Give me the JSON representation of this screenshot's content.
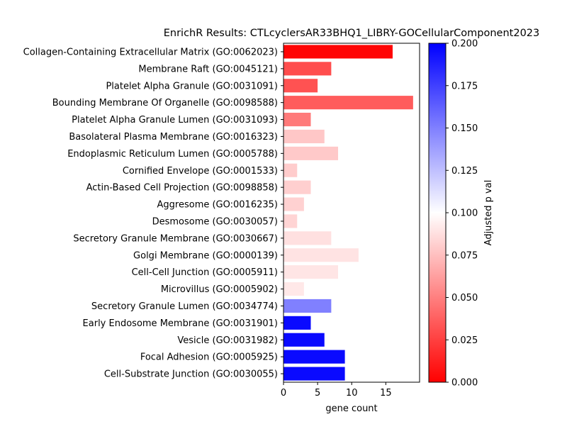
{
  "chart_data": {
    "type": "bar",
    "orientation": "horizontal",
    "title": "EnrichR Results: CTLcyclersAR33BHQ1_LIBRY-GOCellularComponent2023",
    "xlabel": "gene count",
    "ylabel": "",
    "xlim": [
      0,
      19.95
    ],
    "x_ticks": [
      "0",
      "5",
      "10",
      "15"
    ],
    "grid": false,
    "categories": [
      "Collagen-Containing Extracellular Matrix (GO:0062023)",
      "Membrane Raft (GO:0045121)",
      "Platelet Alpha Granule (GO:0031091)",
      "Bounding Membrane Of Organelle (GO:0098588)",
      "Platelet Alpha Granule Lumen (GO:0031093)",
      "Basolateral Plasma Membrane (GO:0016323)",
      "Endoplasmic Reticulum Lumen (GO:0005788)",
      "Cornified Envelope (GO:0001533)",
      "Actin-Based Cell Projection (GO:0098858)",
      "Aggresome (GO:0016235)",
      "Desmosome (GO:0030057)",
      "Secretory Granule Membrane (GO:0030667)",
      "Golgi Membrane (GO:0000139)",
      "Cell-Cell Junction (GO:0005911)",
      "Microvillus (GO:0005902)",
      "Secretory Granule Lumen (GO:0034774)",
      "Early Endosome Membrane (GO:0031901)",
      "Vesicle (GO:0031982)",
      "Focal Adhesion (GO:0005925)",
      "Cell-Substrate Junction (GO:0030055)"
    ],
    "values": [
      16,
      7,
      5,
      19,
      4,
      6,
      8,
      2,
      4,
      3,
      2,
      7,
      11,
      8,
      3,
      7,
      4,
      6,
      9,
      9
    ],
    "adjusted_p_val": [
      0.002,
      0.03,
      0.032,
      0.036,
      0.048,
      0.078,
      0.079,
      0.08,
      0.081,
      0.082,
      0.083,
      0.088,
      0.089,
      0.09,
      0.091,
      0.15,
      0.196,
      0.196,
      0.196,
      0.196
    ],
    "colorbar": {
      "label": "Adjusted p val",
      "range": [
        0.0,
        0.2
      ],
      "ticks": [
        "0.000",
        "0.025",
        "0.050",
        "0.075",
        "0.100",
        "0.125",
        "0.150",
        "0.175",
        "0.200"
      ],
      "colors": [
        "#ff0000",
        "#ffffff",
        "#0000ff"
      ]
    }
  }
}
